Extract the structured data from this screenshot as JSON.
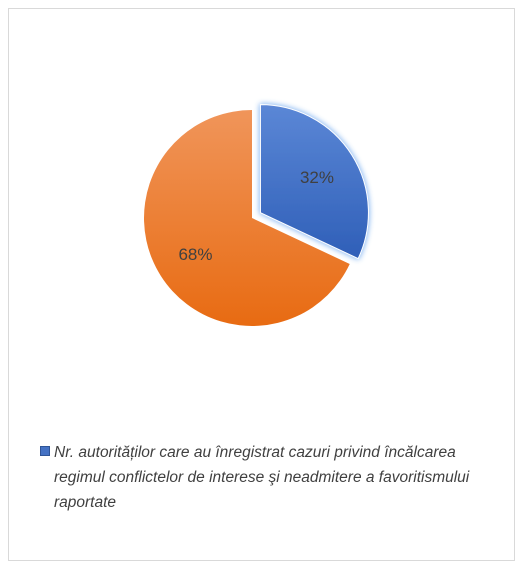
{
  "chart_data": {
    "type": "pie",
    "slices": [
      {
        "label": "32%",
        "value": 32,
        "color": "#4472c4",
        "exploded": true
      },
      {
        "label": "68%",
        "value": 68,
        "color": "#ed7d31",
        "exploded": false
      }
    ],
    "legend": [
      {
        "text": "Nr. autorităților care au înregistrat cazuri privind încălcarea regimul conflictelor de interese şi neadmitere a favoritismului raportate",
        "color": "#4472c4"
      }
    ],
    "legend_position": "bottom"
  }
}
